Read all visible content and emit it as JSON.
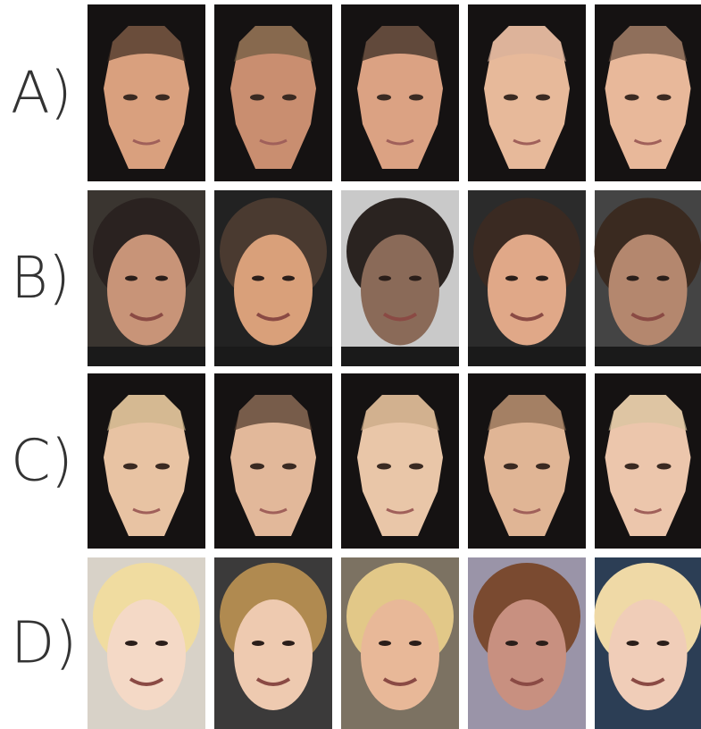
{
  "rows": [
    {
      "label": "A)"
    },
    {
      "label": "B)"
    },
    {
      "label": "C)"
    },
    {
      "label": "D)"
    }
  ]
}
